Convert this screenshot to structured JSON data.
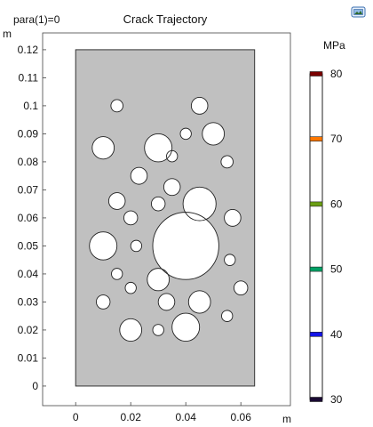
{
  "header": {
    "param_label": "para(1)=0",
    "title": "Crack Trajectory"
  },
  "toolbar": {
    "icon": "image-snapshot-icon"
  },
  "chart_data": {
    "type": "scatter",
    "title": "Crack Trajectory",
    "xlabel": "m",
    "ylabel": "m",
    "xlim": [
      -0.012,
      0.078
    ],
    "ylim": [
      -0.007,
      0.126
    ],
    "x_ticks": [
      0,
      0.02,
      0.04,
      0.06
    ],
    "y_ticks": [
      0,
      0.01,
      0.02,
      0.03,
      0.04,
      0.05,
      0.06,
      0.07,
      0.08,
      0.09,
      0.1,
      0.11,
      0.12
    ],
    "grid": false,
    "domain": {
      "x": [
        0,
        0.065
      ],
      "y": [
        0,
        0.12
      ],
      "fill": "#c0c0c0"
    },
    "holes": [
      {
        "x": 0.015,
        "y": 0.1,
        "r": 0.0022
      },
      {
        "x": 0.045,
        "y": 0.1,
        "r": 0.003
      },
      {
        "x": 0.04,
        "y": 0.09,
        "r": 0.002
      },
      {
        "x": 0.05,
        "y": 0.09,
        "r": 0.004
      },
      {
        "x": 0.01,
        "y": 0.085,
        "r": 0.004
      },
      {
        "x": 0.03,
        "y": 0.085,
        "r": 0.005
      },
      {
        "x": 0.035,
        "y": 0.082,
        "r": 0.002
      },
      {
        "x": 0.055,
        "y": 0.08,
        "r": 0.0022
      },
      {
        "x": 0.023,
        "y": 0.075,
        "r": 0.003
      },
      {
        "x": 0.035,
        "y": 0.071,
        "r": 0.003
      },
      {
        "x": 0.015,
        "y": 0.066,
        "r": 0.003
      },
      {
        "x": 0.03,
        "y": 0.065,
        "r": 0.0025
      },
      {
        "x": 0.045,
        "y": 0.065,
        "r": 0.006
      },
      {
        "x": 0.02,
        "y": 0.06,
        "r": 0.0025
      },
      {
        "x": 0.057,
        "y": 0.06,
        "r": 0.003
      },
      {
        "x": 0.01,
        "y": 0.05,
        "r": 0.005
      },
      {
        "x": 0.022,
        "y": 0.05,
        "r": 0.002
      },
      {
        "x": 0.04,
        "y": 0.05,
        "r": 0.012
      },
      {
        "x": 0.056,
        "y": 0.045,
        "r": 0.002
      },
      {
        "x": 0.015,
        "y": 0.04,
        "r": 0.002
      },
      {
        "x": 0.03,
        "y": 0.038,
        "r": 0.004
      },
      {
        "x": 0.02,
        "y": 0.035,
        "r": 0.002
      },
      {
        "x": 0.06,
        "y": 0.035,
        "r": 0.0025
      },
      {
        "x": 0.01,
        "y": 0.03,
        "r": 0.0025
      },
      {
        "x": 0.033,
        "y": 0.03,
        "r": 0.003
      },
      {
        "x": 0.045,
        "y": 0.03,
        "r": 0.004
      },
      {
        "x": 0.055,
        "y": 0.025,
        "r": 0.002
      },
      {
        "x": 0.02,
        "y": 0.02,
        "r": 0.004
      },
      {
        "x": 0.03,
        "y": 0.02,
        "r": 0.002
      },
      {
        "x": 0.04,
        "y": 0.021,
        "r": 0.005
      }
    ],
    "colorbar": {
      "unit": "MPa",
      "min": 30,
      "max": 80,
      "ticks": [
        30,
        40,
        50,
        60,
        70,
        80
      ],
      "colors": [
        "#1a0a33",
        "#1414e6",
        "#00a064",
        "#6a9e12",
        "#ff7700",
        "#7a0000"
      ]
    }
  }
}
